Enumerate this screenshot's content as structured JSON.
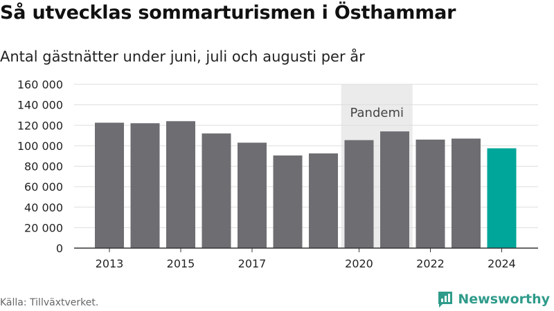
{
  "title": "Så utvecklas sommarturismen i Östhammar",
  "subtitle": "Antal gästnätter under juni, juli och augusti per år",
  "source": "Källa: Tillväxtverket.",
  "brand": {
    "name": "Newsworthy",
    "logo_icon": "newsworthy-chart-icon"
  },
  "colors": {
    "bar": "#6e6d72",
    "highlight": "#00a699",
    "pandemic_band": "#ebebeb",
    "grid": "#dddddd",
    "axis": "#333333"
  },
  "chart_data": {
    "type": "bar",
    "categories": [
      "2013",
      "2014",
      "2015",
      "2016",
      "2017",
      "2018",
      "2019",
      "2020",
      "2021",
      "2022",
      "2023",
      "2024"
    ],
    "tick_labels": [
      "2013",
      "",
      "2015",
      "",
      "2017",
      "",
      "",
      "2020",
      "",
      "2022",
      "",
      "2024"
    ],
    "values": [
      122500,
      122000,
      124000,
      112000,
      103000,
      90500,
      92500,
      105500,
      114000,
      106000,
      107000,
      97500
    ],
    "highlight_category": "2024",
    "ylim": [
      0,
      160000
    ],
    "yticks": [
      0,
      20000,
      40000,
      60000,
      80000,
      100000,
      120000,
      140000,
      160000
    ],
    "ytick_labels": [
      "0",
      "20 000",
      "40 000",
      "60 000",
      "80 000",
      "100 000",
      "120 000",
      "140 000",
      "160 000"
    ],
    "annotation": {
      "label": "Pandemi",
      "from": "2020",
      "to": "2021"
    },
    "xlabel": "",
    "ylabel": "",
    "grid": true,
    "legend": "none"
  }
}
